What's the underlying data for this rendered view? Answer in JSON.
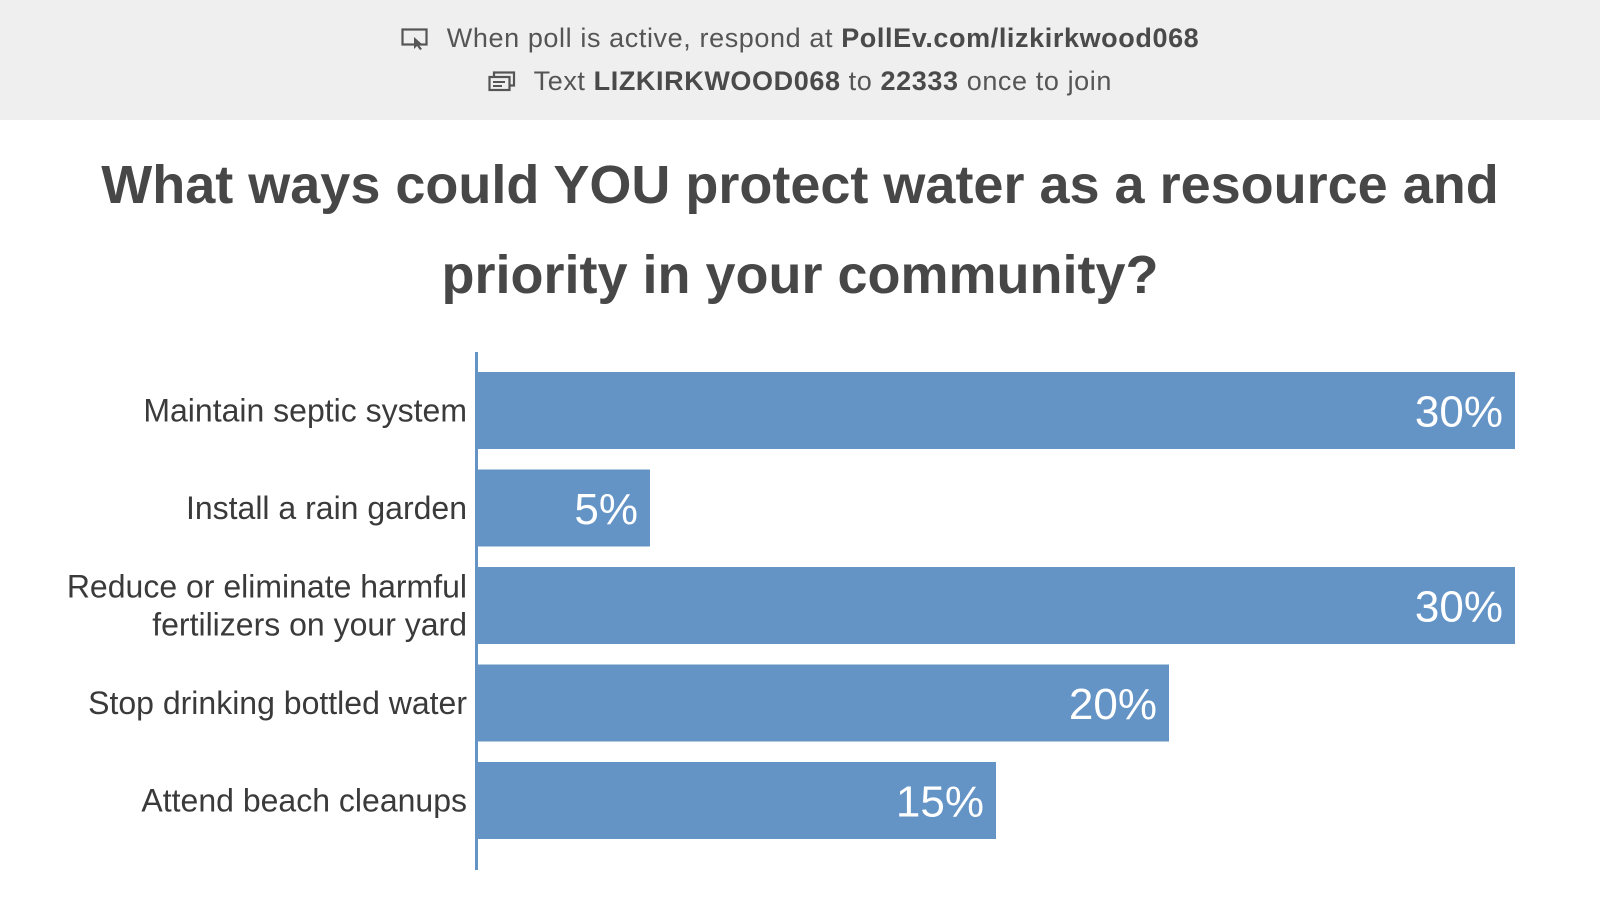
{
  "banner": {
    "line1_prefix": "When poll is active, respond at",
    "line1_url": "PollEv.com/lizkirkwood068",
    "line2_text": "Text",
    "line2_code": "LIZKIRKWOOD068",
    "line2_to": "to",
    "line2_number": "22333",
    "line2_suffix": "once to join",
    "icon1": "screen-pointer-icon",
    "icon2": "message-icon"
  },
  "question": "What ways could YOU protect water as a resource and priority in your community?",
  "colors": {
    "bar": "#6494c6",
    "axis": "#6494c6",
    "banner_bg": "#efefef"
  },
  "chart_data": {
    "type": "bar",
    "orientation": "horizontal",
    "title": "What ways could YOU protect water as a resource and priority in your community?",
    "categories": [
      "Maintain septic system",
      "Install a rain garden",
      "Reduce or eliminate harmful fertilizers on your yard",
      "Stop drinking bottled water",
      "Attend beach cleanups"
    ],
    "category_lines": [
      [
        "Maintain septic system"
      ],
      [
        "Install a rain garden"
      ],
      [
        "Reduce or eliminate harmful",
        "fertilizers on your yard"
      ],
      [
        "Stop drinking bottled water"
      ],
      [
        "Attend beach cleanups"
      ]
    ],
    "values": [
      30,
      5,
      30,
      20,
      15
    ],
    "value_labels": [
      "30%",
      "5%",
      "30%",
      "20%",
      "15%"
    ],
    "unit": "%",
    "xlim": [
      0,
      30
    ],
    "grid": false,
    "legend": "none"
  }
}
